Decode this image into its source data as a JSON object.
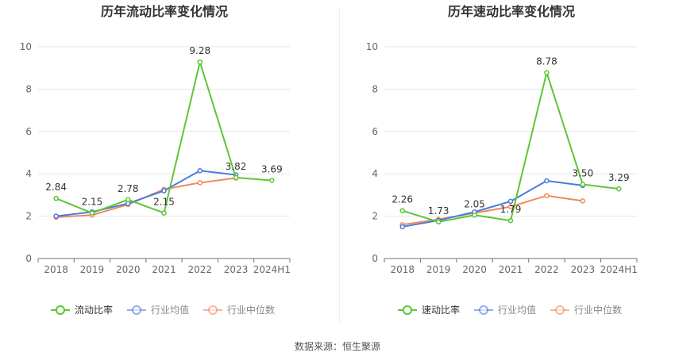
{
  "chart_data": [
    {
      "type": "line",
      "title": "历年流动比率变化情况",
      "categories": [
        "2018",
        "2019",
        "2020",
        "2021",
        "2022",
        "2023",
        "2024H1"
      ],
      "ylim": [
        0,
        10
      ],
      "yticks": [
        0,
        2,
        4,
        6,
        8,
        10
      ],
      "grid": true,
      "legend_position": "bottom",
      "series": [
        {
          "name": "流动比率",
          "color": "#5cc732",
          "values": [
            2.84,
            2.15,
            2.78,
            2.15,
            9.28,
            3.82,
            3.69
          ],
          "labels": [
            "2.84",
            "2.15",
            "2.78",
            "2.15",
            "9.28",
            "3.82",
            "3.69"
          ]
        },
        {
          "name": "行业均值",
          "color": "#4a7be0",
          "values": [
            2.0,
            2.2,
            2.6,
            3.2,
            4.15,
            3.95,
            null
          ]
        },
        {
          "name": "行业中位数",
          "color": "#f08a5d",
          "values": [
            1.95,
            2.05,
            2.55,
            3.27,
            3.58,
            3.8,
            null
          ]
        }
      ]
    },
    {
      "type": "line",
      "title": "历年速动比率变化情况",
      "categories": [
        "2018",
        "2019",
        "2020",
        "2021",
        "2022",
        "2023",
        "2024H1"
      ],
      "ylim": [
        0,
        10
      ],
      "yticks": [
        0,
        2,
        4,
        6,
        8,
        10
      ],
      "grid": true,
      "legend_position": "bottom",
      "series": [
        {
          "name": "速动比率",
          "color": "#5cc732",
          "values": [
            2.26,
            1.73,
            2.05,
            1.79,
            8.78,
            3.5,
            3.29
          ],
          "labels": [
            "2.26",
            "1.73",
            "2.05",
            "1.79",
            "8.78",
            "3.50",
            "3.29"
          ]
        },
        {
          "name": "行业均值",
          "color": "#4a7be0",
          "values": [
            1.5,
            1.8,
            2.2,
            2.7,
            3.67,
            3.45,
            null
          ]
        },
        {
          "name": "行业中位数",
          "color": "#f08a5d",
          "values": [
            1.6,
            1.85,
            2.15,
            2.45,
            2.97,
            2.72,
            null
          ]
        }
      ]
    }
  ],
  "footer": {
    "source": "数据来源：恒生聚源"
  }
}
